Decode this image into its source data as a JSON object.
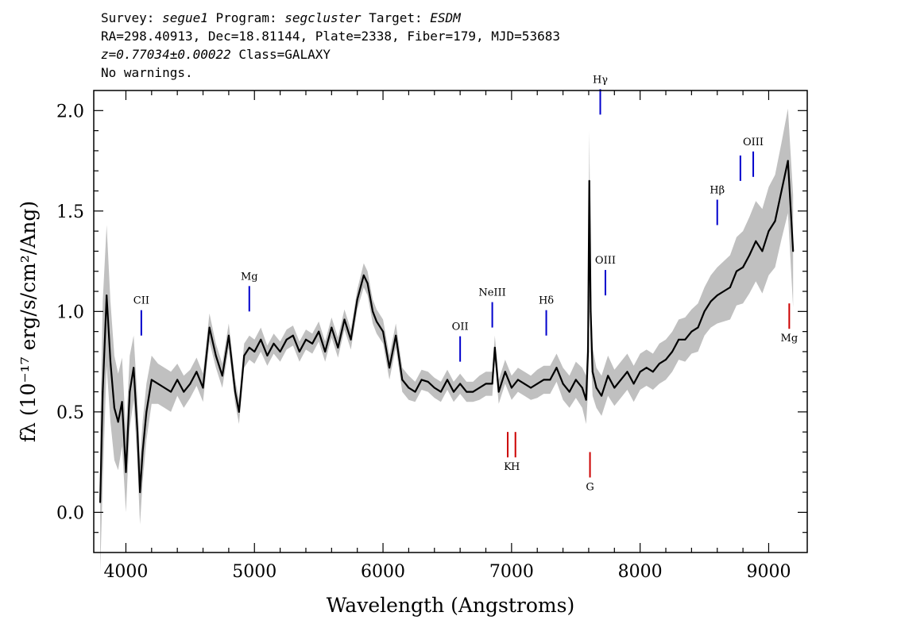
{
  "header": {
    "survey_label": "Survey:",
    "survey": "segue1",
    "program_label": "Program:",
    "program": "segcluster",
    "target_label": "Target:",
    "target": "ESDM",
    "line2": "RA=298.40913, Dec=18.81144, Plate=2338, Fiber=179, MJD=53683",
    "redshift": "z=0.77034±0.00022",
    "class": "Class=GALAXY",
    "warnings": "No warnings."
  },
  "chart_data": {
    "type": "line",
    "xlabel": "Wavelength (Angstroms)",
    "ylabel": "fλ (10⁻¹⁷ erg/s/cm²/Ang)",
    "xlim": [
      3750,
      9300
    ],
    "ylim": [
      -0.2,
      2.1
    ],
    "x_ticks": [
      4000,
      5000,
      6000,
      7000,
      8000,
      9000
    ],
    "y_ticks": [
      0.0,
      0.5,
      1.0,
      1.5,
      2.0
    ],
    "grid": false,
    "series": [
      {
        "role": "flux",
        "color": "#000000",
        "x": [
          3800,
          3820,
          3850,
          3880,
          3910,
          3940,
          3970,
          4000,
          4030,
          4060,
          4090,
          4110,
          4130,
          4160,
          4200,
          4250,
          4300,
          4350,
          4400,
          4450,
          4500,
          4550,
          4600,
          4650,
          4700,
          4750,
          4800,
          4850,
          4880,
          4920,
          4960,
          5000,
          5050,
          5100,
          5150,
          5200,
          5250,
          5300,
          5350,
          5400,
          5450,
          5500,
          5550,
          5600,
          5650,
          5700,
          5750,
          5800,
          5850,
          5880,
          5920,
          5950,
          6000,
          6050,
          6100,
          6150,
          6200,
          6250,
          6300,
          6350,
          6400,
          6450,
          6500,
          6550,
          6600,
          6650,
          6700,
          6750,
          6800,
          6850,
          6870,
          6900,
          6950,
          7000,
          7050,
          7100,
          7150,
          7200,
          7250,
          7300,
          7350,
          7400,
          7450,
          7500,
          7550,
          7580,
          7595,
          7605,
          7615,
          7630,
          7660,
          7700,
          7750,
          7800,
          7850,
          7900,
          7950,
          8000,
          8050,
          8100,
          8150,
          8200,
          8250,
          8300,
          8350,
          8400,
          8450,
          8500,
          8550,
          8600,
          8650,
          8700,
          8750,
          8800,
          8850,
          8900,
          8950,
          9000,
          9050,
          9100,
          9150,
          9190
        ],
        "y": [
          0.05,
          0.6,
          1.08,
          0.75,
          0.52,
          0.45,
          0.55,
          0.2,
          0.6,
          0.72,
          0.4,
          0.1,
          0.3,
          0.5,
          0.66,
          0.64,
          0.62,
          0.6,
          0.66,
          0.6,
          0.64,
          0.7,
          0.62,
          0.92,
          0.78,
          0.68,
          0.88,
          0.6,
          0.5,
          0.78,
          0.82,
          0.8,
          0.86,
          0.78,
          0.84,
          0.8,
          0.86,
          0.88,
          0.8,
          0.86,
          0.84,
          0.9,
          0.8,
          0.92,
          0.82,
          0.96,
          0.86,
          1.06,
          1.18,
          1.14,
          1.0,
          0.95,
          0.9,
          0.72,
          0.88,
          0.66,
          0.62,
          0.6,
          0.66,
          0.65,
          0.62,
          0.6,
          0.66,
          0.6,
          0.64,
          0.6,
          0.6,
          0.62,
          0.64,
          0.64,
          0.82,
          0.6,
          0.7,
          0.62,
          0.66,
          0.64,
          0.62,
          0.64,
          0.66,
          0.66,
          0.72,
          0.64,
          0.6,
          0.66,
          0.62,
          0.56,
          0.8,
          1.65,
          1.0,
          0.7,
          0.62,
          0.58,
          0.68,
          0.62,
          0.66,
          0.7,
          0.64,
          0.7,
          0.72,
          0.7,
          0.74,
          0.76,
          0.8,
          0.86,
          0.86,
          0.9,
          0.92,
          1.0,
          1.05,
          1.08,
          1.1,
          1.12,
          1.2,
          1.22,
          1.28,
          1.35,
          1.3,
          1.4,
          1.45,
          1.6,
          1.75,
          1.3
        ]
      },
      {
        "role": "error",
        "color": "#c0c0c0",
        "x": [
          3800,
          3820,
          3850,
          3880,
          3910,
          3940,
          3970,
          4000,
          4030,
          4060,
          4090,
          4110,
          4130,
          4160,
          4200,
          4250,
          4300,
          4350,
          4400,
          4450,
          4500,
          4550,
          4600,
          4650,
          4700,
          4750,
          4800,
          4850,
          4880,
          4920,
          4960,
          5000,
          5050,
          5100,
          5150,
          5200,
          5250,
          5300,
          5350,
          5400,
          5450,
          5500,
          5550,
          5600,
          5650,
          5700,
          5750,
          5800,
          5850,
          5880,
          5920,
          5950,
          6000,
          6050,
          6100,
          6150,
          6200,
          6250,
          6300,
          6350,
          6400,
          6450,
          6500,
          6550,
          6600,
          6650,
          6700,
          6750,
          6800,
          6850,
          6870,
          6900,
          6950,
          7000,
          7050,
          7100,
          7150,
          7200,
          7250,
          7300,
          7350,
          7400,
          7450,
          7500,
          7550,
          7580,
          7595,
          7605,
          7615,
          7630,
          7660,
          7700,
          7750,
          7800,
          7850,
          7900,
          7950,
          8000,
          8050,
          8100,
          8150,
          8200,
          8250,
          8300,
          8350,
          8400,
          8450,
          8500,
          8550,
          8600,
          8650,
          8700,
          8750,
          8800,
          8850,
          8900,
          8950,
          9000,
          9050,
          9100,
          9150,
          9190
        ],
        "y": [
          0.35,
          0.45,
          0.35,
          0.3,
          0.26,
          0.24,
          0.22,
          0.2,
          0.18,
          0.16,
          0.16,
          0.16,
          0.15,
          0.14,
          0.12,
          0.1,
          0.1,
          0.1,
          0.08,
          0.08,
          0.07,
          0.07,
          0.07,
          0.07,
          0.06,
          0.06,
          0.06,
          0.06,
          0.06,
          0.06,
          0.06,
          0.06,
          0.06,
          0.05,
          0.05,
          0.05,
          0.05,
          0.05,
          0.05,
          0.05,
          0.05,
          0.05,
          0.05,
          0.05,
          0.05,
          0.05,
          0.05,
          0.05,
          0.06,
          0.06,
          0.06,
          0.06,
          0.06,
          0.06,
          0.06,
          0.06,
          0.06,
          0.05,
          0.05,
          0.05,
          0.05,
          0.05,
          0.05,
          0.05,
          0.05,
          0.05,
          0.05,
          0.06,
          0.06,
          0.06,
          0.06,
          0.06,
          0.06,
          0.06,
          0.06,
          0.06,
          0.06,
          0.07,
          0.07,
          0.07,
          0.07,
          0.08,
          0.08,
          0.09,
          0.1,
          0.12,
          0.2,
          0.25,
          0.2,
          0.12,
          0.1,
          0.1,
          0.1,
          0.09,
          0.09,
          0.09,
          0.09,
          0.09,
          0.09,
          0.09,
          0.1,
          0.1,
          0.1,
          0.1,
          0.11,
          0.11,
          0.12,
          0.12,
          0.13,
          0.14,
          0.15,
          0.16,
          0.17,
          0.18,
          0.19,
          0.2,
          0.21,
          0.22,
          0.23,
          0.24,
          0.26,
          0.28
        ]
      }
    ],
    "line_markers": [
      {
        "label": "CII",
        "x": 4120,
        "y": 0.88,
        "color": "#0000cc",
        "side": "above"
      },
      {
        "label": "Mg",
        "x": 4960,
        "y": 1.0,
        "color": "#0000cc",
        "side": "above"
      },
      {
        "label": "OII",
        "x": 6600,
        "y": 0.75,
        "color": "#0000cc",
        "side": "above"
      },
      {
        "label": "NeIII",
        "x": 6850,
        "y": 0.92,
        "color": "#0000cc",
        "side": "above"
      },
      {
        "label": "Hδ",
        "x": 7270,
        "y": 0.88,
        "color": "#0000cc",
        "side": "above"
      },
      {
        "label": "Hγ",
        "x": 7690,
        "y": 1.98,
        "color": "#0000cc",
        "side": "above"
      },
      {
        "label": "OIII",
        "x": 7730,
        "y": 1.08,
        "color": "#0000cc",
        "side": "above"
      },
      {
        "label": "Hβ",
        "x": 8600,
        "y": 1.43,
        "color": "#0000cc",
        "side": "above"
      },
      {
        "label": "",
        "x": 8780,
        "y": 1.65,
        "color": "#0000cc",
        "side": "above"
      },
      {
        "label": "OIII",
        "x": 8880,
        "y": 1.67,
        "color": "#0000cc",
        "side": "above"
      },
      {
        "label": "K",
        "x": 6970,
        "y": 0.4,
        "color": "#cc0000",
        "side": "below"
      },
      {
        "label": "H",
        "x": 7030,
        "y": 0.4,
        "color": "#cc0000",
        "side": "below"
      },
      {
        "label": "G",
        "x": 7610,
        "y": 0.3,
        "color": "#cc0000",
        "side": "below"
      },
      {
        "label": "Mg",
        "x": 9160,
        "y": 1.04,
        "color": "#cc0000",
        "side": "below"
      }
    ]
  }
}
